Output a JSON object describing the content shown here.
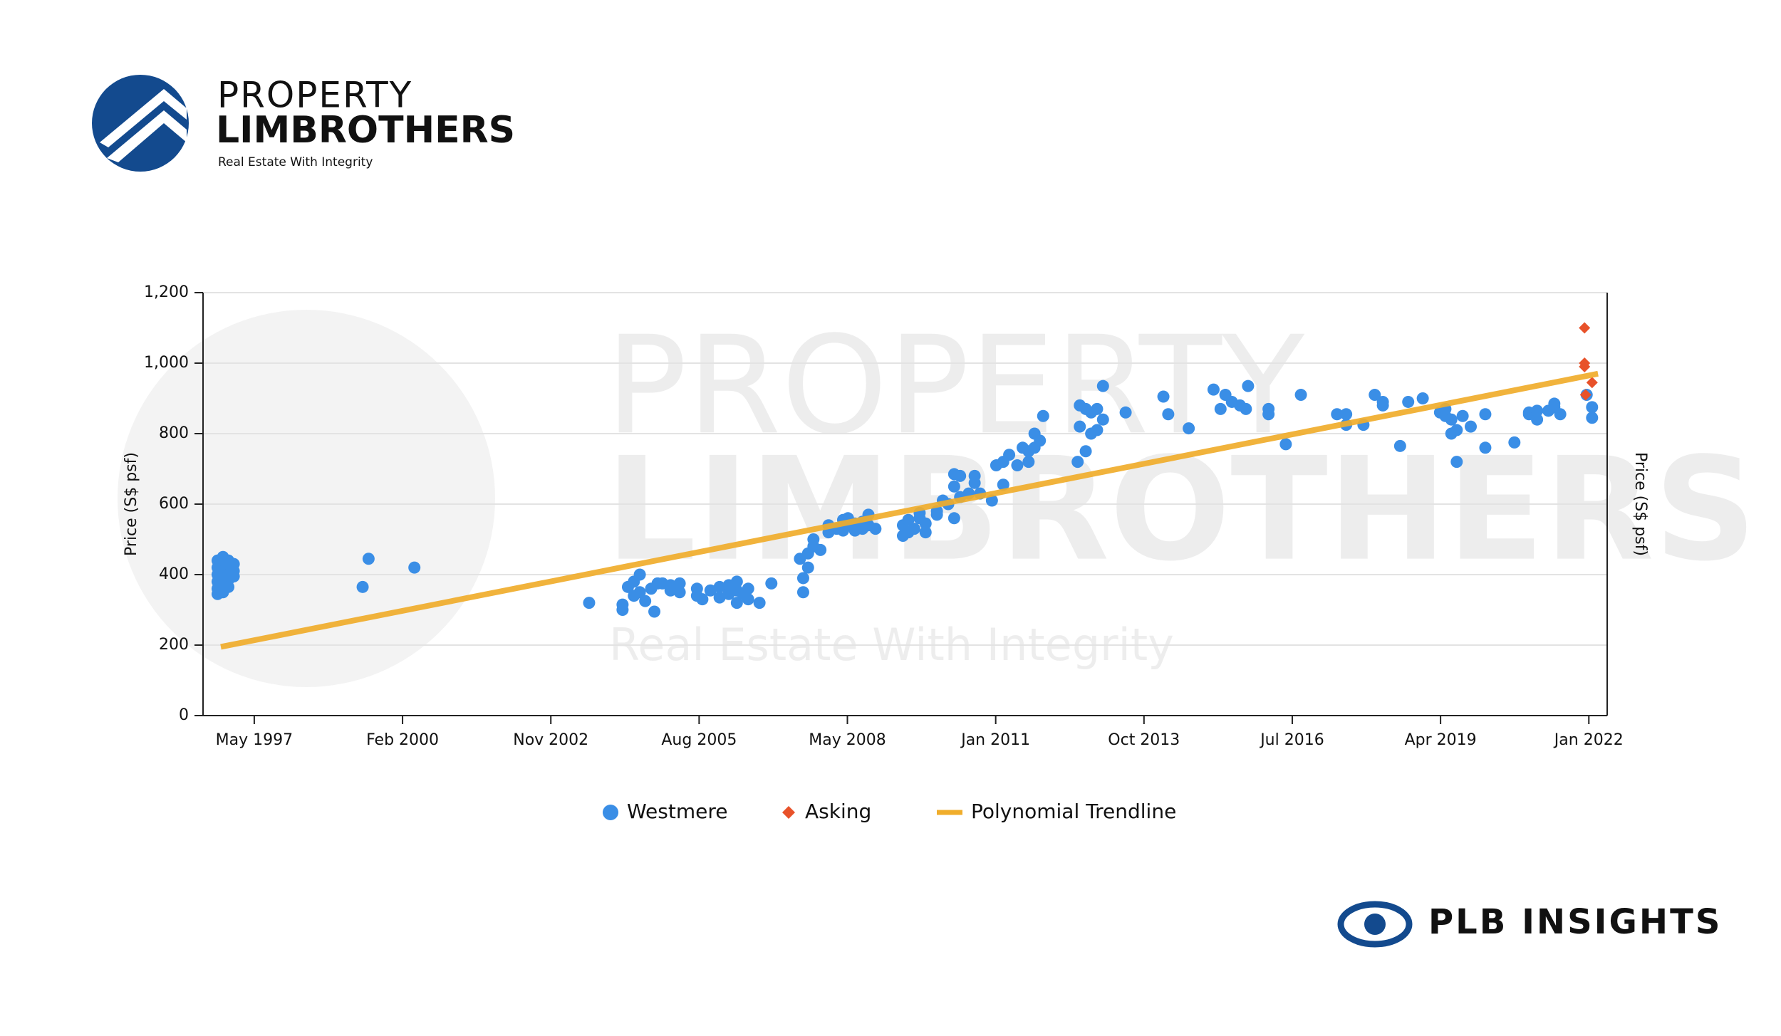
{
  "branding": {
    "logo_line1": "PROPERTY",
    "logo_line2": "LIMBROTHERS",
    "tagline": "Real Estate With Integrity",
    "insights": "PLB INSIGHTS"
  },
  "chart_data": {
    "type": "scatter",
    "ylabel": "Price (S$ psf)",
    "y2label": "Price (S$ psf)",
    "xlim": [
      1996.38,
      2022.42
    ],
    "ylim": [
      0,
      1200
    ],
    "xticks": [
      {
        "value": 1997.33,
        "label": "May 1997"
      },
      {
        "value": 2000.08,
        "label": "Feb 2000"
      },
      {
        "value": 2002.83,
        "label": "Nov 2002"
      },
      {
        "value": 2005.58,
        "label": "Aug 2005"
      },
      {
        "value": 2008.33,
        "label": "May 2008"
      },
      {
        "value": 2011.08,
        "label": "Jan 2011"
      },
      {
        "value": 2013.83,
        "label": "Oct 2013"
      },
      {
        "value": 2016.58,
        "label": "Jul 2016"
      },
      {
        "value": 2019.33,
        "label": "Apr 2019"
      },
      {
        "value": 2022.08,
        "label": "Jan 2022"
      }
    ],
    "yticks": [
      0,
      200,
      400,
      600,
      800,
      {
        "value": 1000,
        "label": "1,000"
      },
      {
        "value": 1200,
        "label": "1,200"
      }
    ],
    "grid": true,
    "legend": "bottom",
    "series": [
      {
        "name": "Westmere",
        "color": "#3a8ee6",
        "marker": "circle",
        "x": [
          1996.65,
          1996.65,
          1996.65,
          1996.65,
          1996.65,
          1996.65,
          1996.75,
          1996.75,
          1996.75,
          1996.75,
          1996.75,
          1996.75,
          1996.85,
          1996.85,
          1996.85,
          1996.85,
          1996.85,
          1996.95,
          1996.95,
          1996.95,
          1999.34,
          1999.45,
          2000.3,
          2003.54,
          2004.16,
          2004.16,
          2004.26,
          2004.37,
          2004.37,
          2004.48,
          2004.48,
          2004.58,
          2004.69,
          2004.75,
          2004.81,
          2004.9,
          2005.05,
          2005.05,
          2005.22,
          2005.22,
          2005.54,
          2005.54,
          2005.64,
          2005.79,
          2005.96,
          2005.96,
          2006.13,
          2006.13,
          2006.28,
          2006.28,
          2006.28,
          2006.39,
          2006.49,
          2006.49,
          2006.7,
          2006.92,
          2007.45,
          2007.51,
          2007.51,
          2007.6,
          2007.6,
          2007.7,
          2007.7,
          2007.83,
          2007.98,
          2007.98,
          2008.13,
          2008.25,
          2008.25,
          2008.34,
          2008.34,
          2008.47,
          2008.47,
          2008.61,
          2008.61,
          2008.72,
          2008.72,
          2008.85,
          2009.36,
          2009.36,
          2009.46,
          2009.46,
          2009.57,
          2009.67,
          2009.67,
          2009.78,
          2009.78,
          2009.99,
          2009.99,
          2010.1,
          2010.2,
          2010.31,
          2010.31,
          2010.31,
          2010.42,
          2010.42,
          2010.58,
          2010.69,
          2010.69,
          2010.79,
          2011.01,
          2011.09,
          2011.22,
          2011.22,
          2011.33,
          2011.48,
          2011.58,
          2011.69,
          2011.69,
          2011.8,
          2011.8,
          2011.9,
          2011.96,
          2012.6,
          2012.64,
          2012.64,
          2012.75,
          2012.75,
          2012.85,
          2012.85,
          2012.96,
          2012.96,
          2013.07,
          2013.07,
          2013.49,
          2014.19,
          2014.28,
          2014.66,
          2015.12,
          2015.25,
          2015.34,
          2015.46,
          2015.61,
          2015.72,
          2015.76,
          2016.14,
          2016.14,
          2016.46,
          2016.74,
          2017.41,
          2017.58,
          2017.58,
          2017.9,
          2018.11,
          2018.26,
          2018.26,
          2018.58,
          2018.73,
          2019.0,
          2019.32,
          2019.42,
          2019.42,
          2019.53,
          2019.53,
          2019.63,
          2019.63,
          2019.74,
          2019.89,
          2020.16,
          2020.16,
          2020.7,
          2020.97,
          2020.97,
          2021.12,
          2021.12,
          2021.33,
          2021.44,
          2021.44,
          2021.55,
          2022.04,
          2022.14,
          2022.14
        ],
        "values": [
          440,
          420,
          400,
          380,
          360,
          345,
          450,
          430,
          410,
          390,
          370,
          350,
          440,
          420,
          400,
          385,
          365,
          430,
          410,
          395,
          365,
          445,
          420,
          320,
          300,
          315,
          365,
          380,
          340,
          400,
          350,
          325,
          360,
          295,
          375,
          375,
          370,
          355,
          375,
          350,
          340,
          360,
          330,
          355,
          365,
          335,
          370,
          345,
          380,
          320,
          355,
          345,
          360,
          330,
          320,
          375,
          445,
          350,
          390,
          460,
          420,
          480,
          500,
          470,
          520,
          540,
          530,
          555,
          525,
          560,
          540,
          545,
          525,
          530,
          550,
          570,
          540,
          530,
          540,
          510,
          555,
          520,
          530,
          560,
          575,
          520,
          545,
          580,
          570,
          610,
          600,
          650,
          685,
          560,
          680,
          620,
          630,
          680,
          660,
          630,
          610,
          710,
          655,
          720,
          740,
          710,
          760,
          750,
          720,
          760,
          800,
          780,
          850,
          720,
          880,
          820,
          870,
          750,
          800,
          860,
          870,
          810,
          840,
          935,
          860,
          905,
          855,
          815,
          925,
          870,
          910,
          890,
          880,
          870,
          935,
          870,
          855,
          770,
          910,
          855,
          855,
          825,
          825,
          910,
          880,
          890,
          765,
          890,
          900,
          860,
          850,
          870,
          840,
          800,
          810,
          720,
          850,
          820,
          855,
          760,
          775,
          860,
          855,
          840,
          865,
          865,
          875,
          885,
          855,
          910,
          845,
          875
        ]
      },
      {
        "name": "Asking",
        "color": "#e8522a",
        "marker": "diamond",
        "x": [
          2022.0,
          2022.0,
          2022.0,
          2022.14,
          2022.02
        ],
        "values": [
          1100,
          1000,
          990,
          945,
          910
        ]
      },
      {
        "name": "Polynomial Trendline",
        "color": "#f0ad2b",
        "marker": "line",
        "x": [
          1996.71,
          2022.25
        ],
        "values": [
          195,
          970
        ]
      }
    ]
  }
}
